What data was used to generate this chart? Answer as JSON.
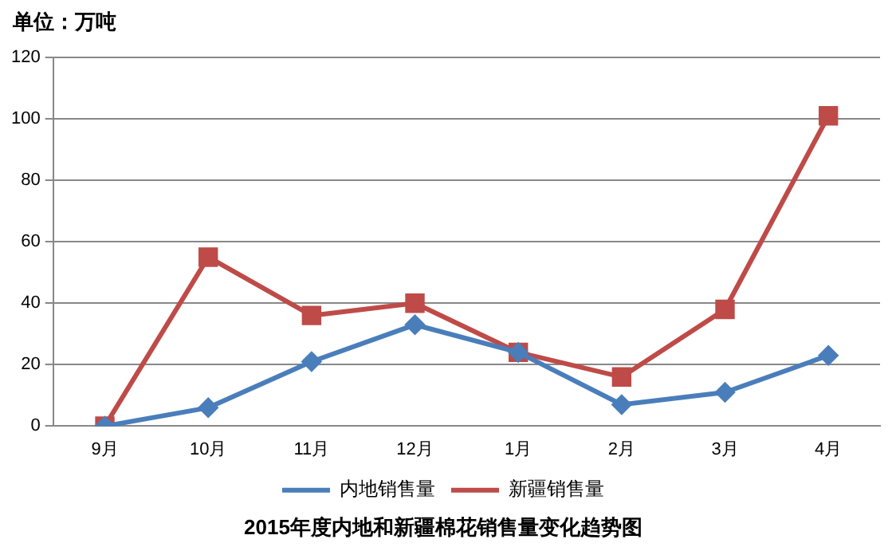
{
  "chart_data": {
    "type": "line",
    "title": "2015年度内地和新疆棉花销售量变化趋势图",
    "ylabel": "单位：万吨",
    "categories": [
      "9月",
      "10月",
      "11月",
      "12月",
      "1月",
      "2月",
      "3月",
      "4月"
    ],
    "series": [
      {
        "name": "内地销售量",
        "color": "#4a7ebb",
        "marker": "diamond",
        "values": [
          0,
          6,
          21,
          33,
          24,
          7,
          11,
          23
        ]
      },
      {
        "name": "新疆销售量",
        "color": "#be4b48",
        "marker": "square",
        "values": [
          0,
          55,
          36,
          40,
          24,
          16,
          38,
          101
        ]
      }
    ],
    "ylim": [
      0,
      120
    ],
    "yticks": [
      0,
      20,
      40,
      60,
      80,
      100,
      120
    ],
    "grid": "y",
    "legend": "bottom",
    "line_style": "solid"
  }
}
